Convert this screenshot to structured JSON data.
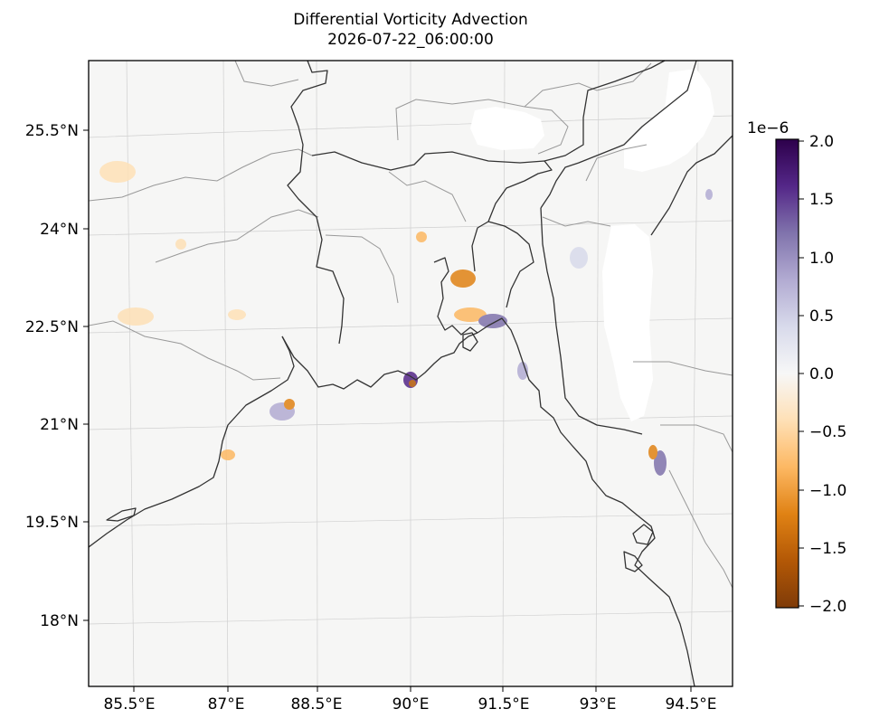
{
  "title": {
    "line1": "Differential Vorticity Advection",
    "line2": "2026-07-22_06:00:00"
  },
  "map": {
    "lon_ticks": [
      {
        "value": 85.5,
        "label": "85.5°E"
      },
      {
        "value": 87.0,
        "label": "87°E"
      },
      {
        "value": 88.5,
        "label": "88.5°E"
      },
      {
        "value": 90.0,
        "label": "90°E"
      },
      {
        "value": 91.5,
        "label": "91.5°E"
      },
      {
        "value": 93.0,
        "label": "93°E"
      },
      {
        "value": 94.5,
        "label": "94.5°E"
      }
    ],
    "lat_ticks": [
      {
        "value": 25.5,
        "label": "25.5°N"
      },
      {
        "value": 24.0,
        "label": "24°N"
      },
      {
        "value": 22.5,
        "label": "22.5°N"
      },
      {
        "value": 21.0,
        "label": "21°N"
      },
      {
        "value": 19.5,
        "label": "19.5°N"
      },
      {
        "value": 18.0,
        "label": "18°N"
      }
    ],
    "lon_range": [
      84.87,
      94.77
    ],
    "lat_range": [
      16.9,
      26.55
    ],
    "field_colormap": "PuOr",
    "missing_data_color": "#ffffff",
    "coastline_color": "#333333",
    "admin_boundary_color": "#999999"
  },
  "colorbar": {
    "exponent_label": "1e−6",
    "ticks": [
      {
        "value": 2.0,
        "label": "2.0"
      },
      {
        "value": 1.5,
        "label": "1.5"
      },
      {
        "value": 1.0,
        "label": "1.0"
      },
      {
        "value": 0.5,
        "label": "0.5"
      },
      {
        "value": 0.0,
        "label": "0.0"
      },
      {
        "value": -0.5,
        "label": "−0.5"
      },
      {
        "value": -1.0,
        "label": "−1.0"
      },
      {
        "value": -1.5,
        "label": "−1.5"
      },
      {
        "value": -2.0,
        "label": "−2.0"
      }
    ],
    "range": [
      -2.0,
      2.0
    ],
    "colors": [
      "#7f3b08",
      "#b35806",
      "#e08214",
      "#fdb863",
      "#fee0b6",
      "#f7f7f7",
      "#d8daeb",
      "#b2abd2",
      "#8073ac",
      "#542788",
      "#2d004b"
    ]
  }
}
